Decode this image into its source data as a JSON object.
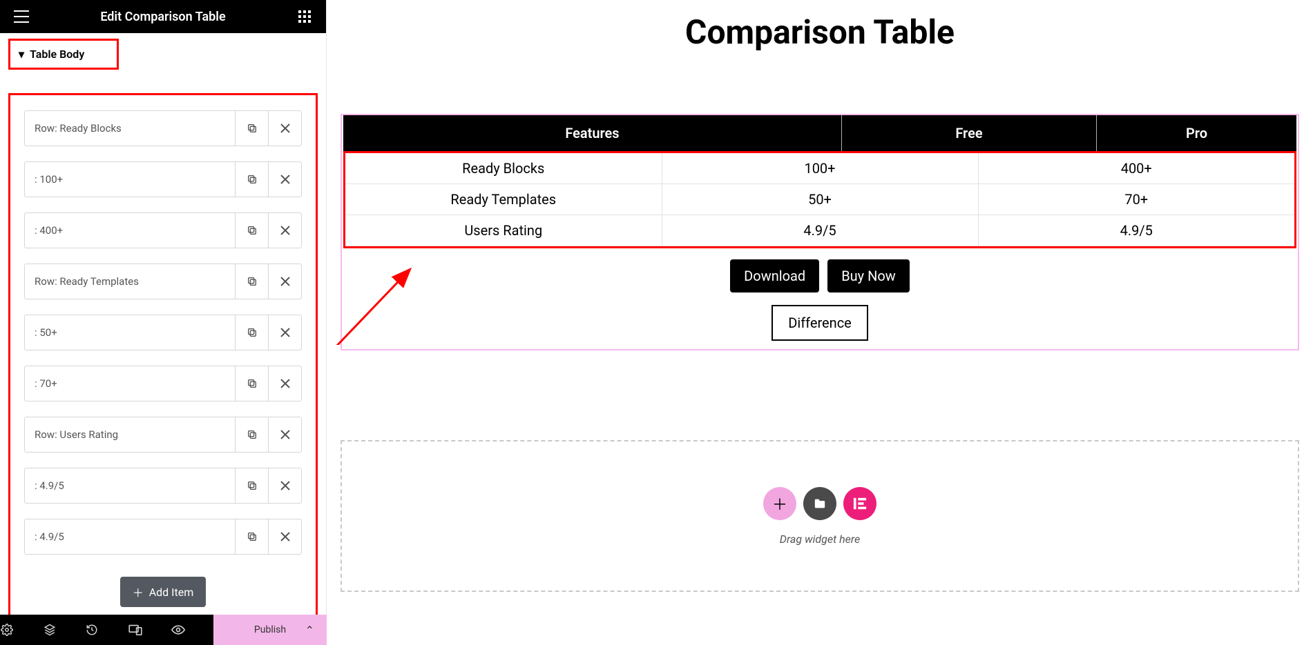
{
  "sidebar": {
    "title": "Edit Comparison Table",
    "section_label": "Table Body",
    "items": [
      {
        "label": "Row: Ready Blocks"
      },
      {
        "label": ": 100+"
      },
      {
        "label": ": 400+"
      },
      {
        "label": ": Row: Ready Templates",
        "display": "Row: Ready Templates"
      },
      {
        "label": ": 50+"
      },
      {
        "label": ": 70+"
      },
      {
        "label": "Row: Users Rating"
      },
      {
        "label": ": 4.9/5"
      },
      {
        "label": ": 4.9/5"
      }
    ],
    "add_item_label": "Add Item"
  },
  "bottom_bar": {
    "publish_label": "Publish"
  },
  "canvas": {
    "title": "Comparison Table",
    "columns": [
      "Features",
      "Free",
      "Pro"
    ],
    "rows": [
      [
        "Ready Blocks",
        "100+",
        "400+"
      ],
      [
        "Ready Templates",
        "50+",
        "70+"
      ],
      [
        "Users Rating",
        "4.9/5",
        "4.9/5"
      ]
    ],
    "download_label": "Download",
    "buy_label": "Buy Now",
    "difference_label": "Difference",
    "drop_text": "Drag widget here"
  },
  "colors": {
    "highlight": "#ff0000",
    "accent_pink": "#f3b6e8",
    "header_bg": "#000000"
  }
}
